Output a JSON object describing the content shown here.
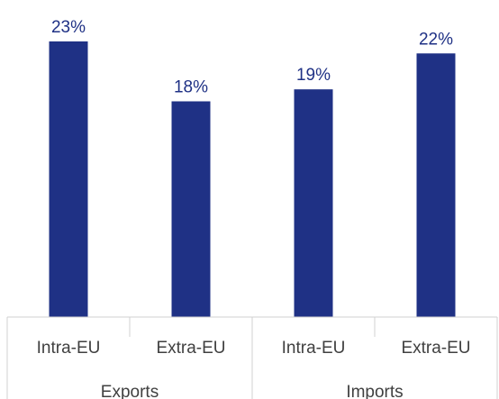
{
  "chart_data": {
    "type": "bar",
    "title": "",
    "xlabel": "",
    "ylabel": "",
    "groups": [
      {
        "label": "Exports",
        "categories": [
          "Intra-EU",
          "Extra-EU"
        ]
      },
      {
        "label": "Imports",
        "categories": [
          "Intra-EU",
          "Extra-EU"
        ]
      }
    ],
    "categories": [
      "Intra-EU",
      "Extra-EU",
      "Intra-EU",
      "Extra-EU"
    ],
    "values": [
      23,
      18,
      19,
      22
    ],
    "value_labels": [
      "23%",
      "18%",
      "19%",
      "22%"
    ],
    "ylim": [
      0,
      25
    ],
    "unit": "%",
    "grid": false,
    "bar_color": "#1f3185"
  }
}
